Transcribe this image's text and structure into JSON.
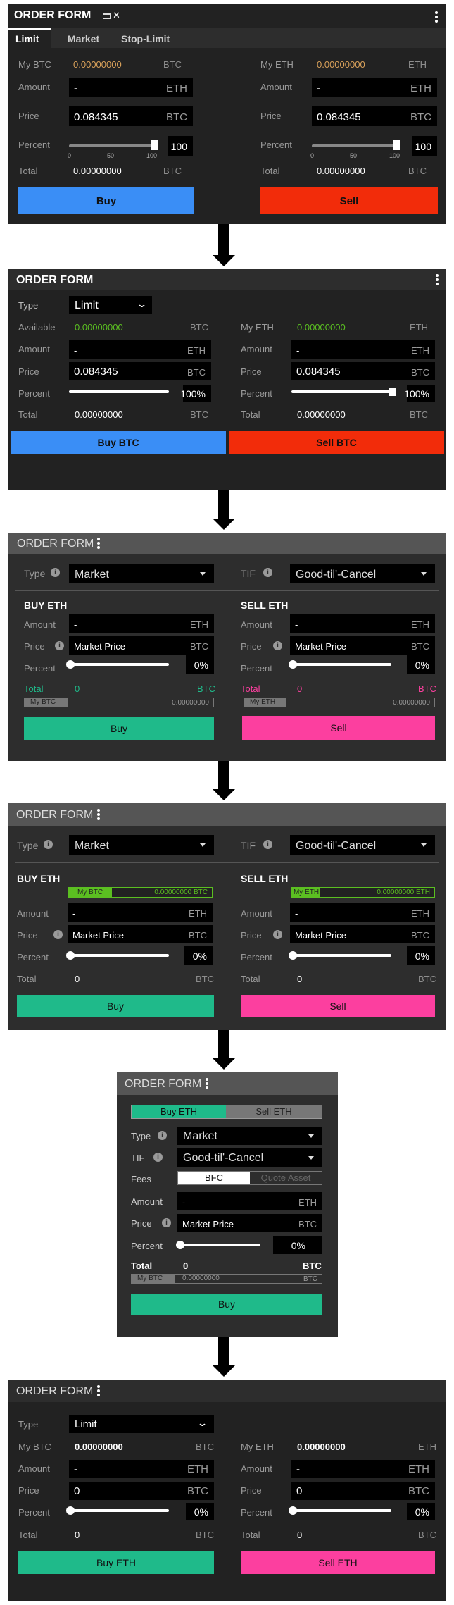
{
  "p1": {
    "title": "ORDER FORM",
    "tabs": [
      "Limit",
      "Market",
      "Stop-Limit"
    ],
    "left": {
      "bal_label": "My BTC",
      "bal_value": "0.00000000",
      "bal_unit": "BTC",
      "amount_label": "Amount",
      "amount_value": "-",
      "amount_unit": "ETH",
      "price_label": "Price",
      "price_value": "0.084345",
      "price_unit": "BTC",
      "percent_label": "Percent",
      "percent_value": "100",
      "total_label": "Total",
      "total_value": "0.00000000",
      "total_unit": "BTC",
      "button": "Buy"
    },
    "right": {
      "bal_label": "My ETH",
      "bal_value": "0.00000000",
      "bal_unit": "ETH",
      "amount_label": "Amount",
      "amount_value": "-",
      "amount_unit": "ETH",
      "price_label": "Price",
      "price_value": "0.084345",
      "price_unit": "BTC",
      "percent_label": "Percent",
      "percent_value": "100",
      "total_label": "Total",
      "total_value": "0.00000000",
      "total_unit": "BTC",
      "button": "Sell"
    },
    "ticks": [
      "0",
      "50",
      "100"
    ],
    "slider_fraction": 1.0
  },
  "p2": {
    "title": "ORDER FORM",
    "type_label": "Type",
    "type_value": "Limit",
    "left": {
      "bal_label": "Available",
      "bal_value": "0.00000000",
      "bal_unit": "BTC",
      "amount_label": "Amount",
      "amount_value": "-",
      "amount_unit": "ETH",
      "price_label": "Price",
      "price_value": "0.084345",
      "price_unit": "BTC",
      "percent_label": "Percent",
      "percent_value": "100%",
      "total_label": "Total",
      "total_value": "0.00000000",
      "total_unit": "BTC",
      "button": "Buy BTC"
    },
    "right": {
      "bal_label": "My ETH",
      "bal_value": "0.00000000",
      "bal_unit": "ETH",
      "amount_label": "Amount",
      "amount_value": "-",
      "amount_unit": "ETH",
      "price_label": "Price",
      "price_value": "0.084345",
      "price_unit": "BTC",
      "percent_label": "Percent",
      "percent_value": "100%",
      "total_label": "Total",
      "total_value": "0.00000000",
      "total_unit": "BTC",
      "button": "Sell BTC"
    }
  },
  "p3": {
    "title": "ORDER FORM",
    "type_label": "Type",
    "type_value": "Market",
    "tif_label": "TIF",
    "tif_value": "Good-til'-Cancel",
    "left": {
      "heading": "BUY ETH",
      "amount_label": "Amount",
      "amount_value": "-",
      "amount_unit": "ETH",
      "price_label": "Price",
      "price_value": "Market Price",
      "price_unit": "BTC",
      "percent_label": "Percent",
      "percent_value": "0%",
      "total_label": "Total",
      "total_value": "0",
      "total_unit": "BTC",
      "bal_label": "My BTC",
      "bal_value": "0.00000000",
      "button": "Buy"
    },
    "right": {
      "heading": "SELL ETH",
      "amount_label": "Amount",
      "amount_value": "-",
      "amount_unit": "ETH",
      "price_label": "Price",
      "price_value": "Market Price",
      "price_unit": "BTC",
      "percent_label": "Percent",
      "percent_value": "0%",
      "total_label": "Total",
      "total_value": "0",
      "total_unit": "BTC",
      "bal_label": "My ETH",
      "bal_value": "0.00000000",
      "button": "Sell"
    }
  },
  "p4": {
    "title": "ORDER FORM",
    "type_label": "Type",
    "type_value": "Market",
    "tif_label": "TIF",
    "tif_value": "Good-til'-Cancel",
    "left": {
      "heading": "BUY ETH",
      "bal_label": "My BTC",
      "bal_value": "0.00000000 BTC",
      "amount_label": "Amount",
      "amount_value": "-",
      "amount_unit": "ETH",
      "price_label": "Price",
      "price_value": "Market Price",
      "price_unit": "BTC",
      "percent_label": "Percent",
      "percent_value": "0%",
      "total_label": "Total",
      "total_value": "0",
      "total_unit": "BTC",
      "button": "Buy"
    },
    "right": {
      "heading": "SELL ETH",
      "bal_label": "My ETH",
      "bal_value": "0.00000000 ETH",
      "amount_label": "Amount",
      "amount_value": "-",
      "amount_unit": "ETH",
      "price_label": "Price",
      "price_value": "Market Price",
      "price_unit": "BTC",
      "percent_label": "Percent",
      "percent_value": "0%",
      "total_label": "Total",
      "total_value": "0",
      "total_unit": "BTC",
      "button": "Sell"
    }
  },
  "p5": {
    "title": "ORDER FORM",
    "toggle_buy": "Buy ETH",
    "toggle_sell": "Sell ETH",
    "type_label": "Type",
    "type_value": "Market",
    "tif_label": "TIF",
    "tif_value": "Good-til'-Cancel",
    "fees_label": "Fees",
    "fees_opt1": "BFC",
    "fees_opt2": "Quote Asset",
    "amount_label": "Amount",
    "amount_value": "-",
    "amount_unit": "ETH",
    "price_label": "Price",
    "price_value": "Market Price",
    "price_unit": "BTC",
    "percent_label": "Percent",
    "percent_value": "0%",
    "total_label": "Total",
    "total_value": "0",
    "total_unit": "BTC",
    "bal_label": "My BTC",
    "bal_value": "0.00000000",
    "bal_unit": "BTC",
    "button": "Buy"
  },
  "p6": {
    "title": "ORDER FORM",
    "type_label": "Type",
    "type_value": "Limit",
    "left": {
      "bal_label": "My BTC",
      "bal_value": "0.00000000",
      "bal_unit": "BTC",
      "amount_label": "Amount",
      "amount_value": "-",
      "amount_unit": "ETH",
      "price_label": "Price",
      "price_value": "0",
      "price_unit": "BTC",
      "percent_label": "Percent",
      "percent_value": "0%",
      "total_label": "Total",
      "total_value": "0",
      "total_unit": "BTC",
      "button": "Buy ETH"
    },
    "right": {
      "bal_label": "My ETH",
      "bal_value": "0.00000000",
      "bal_unit": "ETH",
      "amount_label": "Amount",
      "amount_value": "-",
      "amount_unit": "ETH",
      "price_label": "Price",
      "price_value": "0",
      "price_unit": "BTC",
      "percent_label": "Percent",
      "percent_value": "0%",
      "total_label": "Total",
      "total_value": "0",
      "total_unit": "BTC",
      "button": "Sell ETH"
    }
  },
  "colors": {
    "panel": "#222222",
    "panel_alt": "#2d2d2d",
    "blue": "#3a8ef6",
    "red": "#f22c0a",
    "green": "#1fba8a",
    "pink": "#fc3f9f",
    "orange": "#d9a15a",
    "lime": "#5bbf21"
  }
}
